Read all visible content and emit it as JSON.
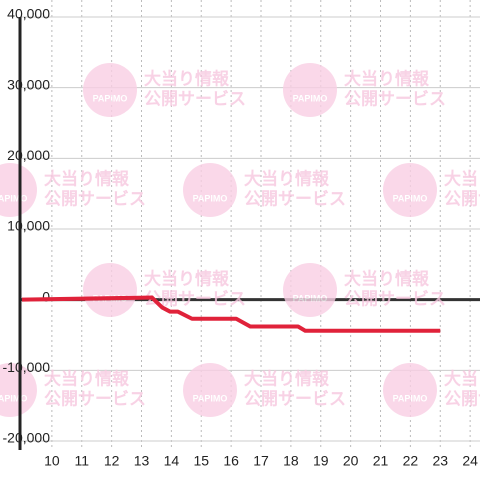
{
  "chart_data": {
    "type": "line",
    "x": [
      9.0,
      13.35,
      13.69,
      13.96,
      14.22,
      14.69,
      16.17,
      16.64,
      18.24,
      18.48,
      23.0
    ],
    "series": [
      {
        "color": "#e0223a",
        "values": [
          0,
          300,
          -1100,
          -1700,
          -1700,
          -2700,
          -2700,
          -3800,
          -3800,
          -4400,
          -4400
        ]
      }
    ],
    "xlim": [
      9,
      24.33
    ],
    "xticks": [
      10,
      11,
      12,
      13,
      14,
      15,
      16,
      17,
      18,
      19,
      20,
      21,
      22,
      23,
      24
    ],
    "ylim": [
      -20000,
      40000
    ],
    "yticks": [
      {
        "value": -20000,
        "label": "-20,000"
      },
      {
        "value": -10000,
        "label": "-10,000"
      },
      0,
      {
        "value": 10000,
        "label": "10,000"
      },
      {
        "value": 20000,
        "label": "20,000"
      },
      {
        "value": 30000,
        "label": "30,000"
      },
      {
        "value": 40000,
        "label": "40,000"
      }
    ],
    "grid": true,
    "watermark": {
      "logo": "PAPIMO",
      "line1": "大当り情報",
      "line2": "公開サービス"
    }
  }
}
